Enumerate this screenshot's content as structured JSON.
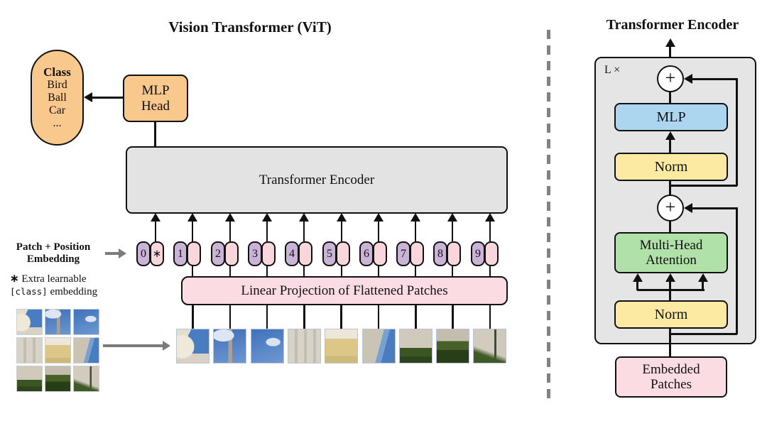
{
  "left": {
    "title": "Vision Transformer (ViT)",
    "class_capsule": {
      "heading": "Class",
      "items": [
        "Bird",
        "Ball",
        "Car",
        "..."
      ]
    },
    "mlp_head": {
      "line1": "MLP",
      "line2": "Head"
    },
    "encoder_box_label": "Transformer Encoder",
    "projection_box_label": "Linear Projection of Flattened Patches",
    "embedding_label": {
      "line1": "Patch + Position",
      "line2": "Embedding"
    },
    "footnote": {
      "star": "∗",
      "line1": "Extra learnable",
      "code": "[class]",
      "line2_rest": "embedding"
    },
    "class_token_mark": "∗",
    "tokens": [
      "0",
      "1",
      "2",
      "3",
      "4",
      "5",
      "6",
      "7",
      "8",
      "9"
    ],
    "patch_descriptions": [
      "dome-and-sky",
      "tower-and-sky",
      "sky",
      "white-facade",
      "yellow-facade",
      "facade-and-sky",
      "building-and-hedge",
      "hedge",
      "street-and-tree"
    ]
  },
  "right": {
    "title": "Transformer Encoder",
    "loop_label": "L ×",
    "plus_symbol": "+",
    "mlp_label": "MLP",
    "norm_top_label": "Norm",
    "attention": {
      "line1": "Multi-Head",
      "line2": "Attention"
    },
    "norm_bottom_label": "Norm",
    "embedded": {
      "line1": "Embedded",
      "line2": "Patches"
    }
  },
  "colors": {
    "orange": "#F8C88D",
    "purple_pill": "#C9B4D8",
    "pink_pill": "#F8D6DC",
    "pink_box": "#FBDCE2",
    "blue": "#ACD6EF",
    "yellow": "#FCE9A2",
    "green": "#B0E1A8",
    "panel_gray": "#E5E5E5",
    "encoder_gray": "#E3E3E3",
    "line_black": "#111111",
    "arrow_gray": "#7B7B7B"
  }
}
